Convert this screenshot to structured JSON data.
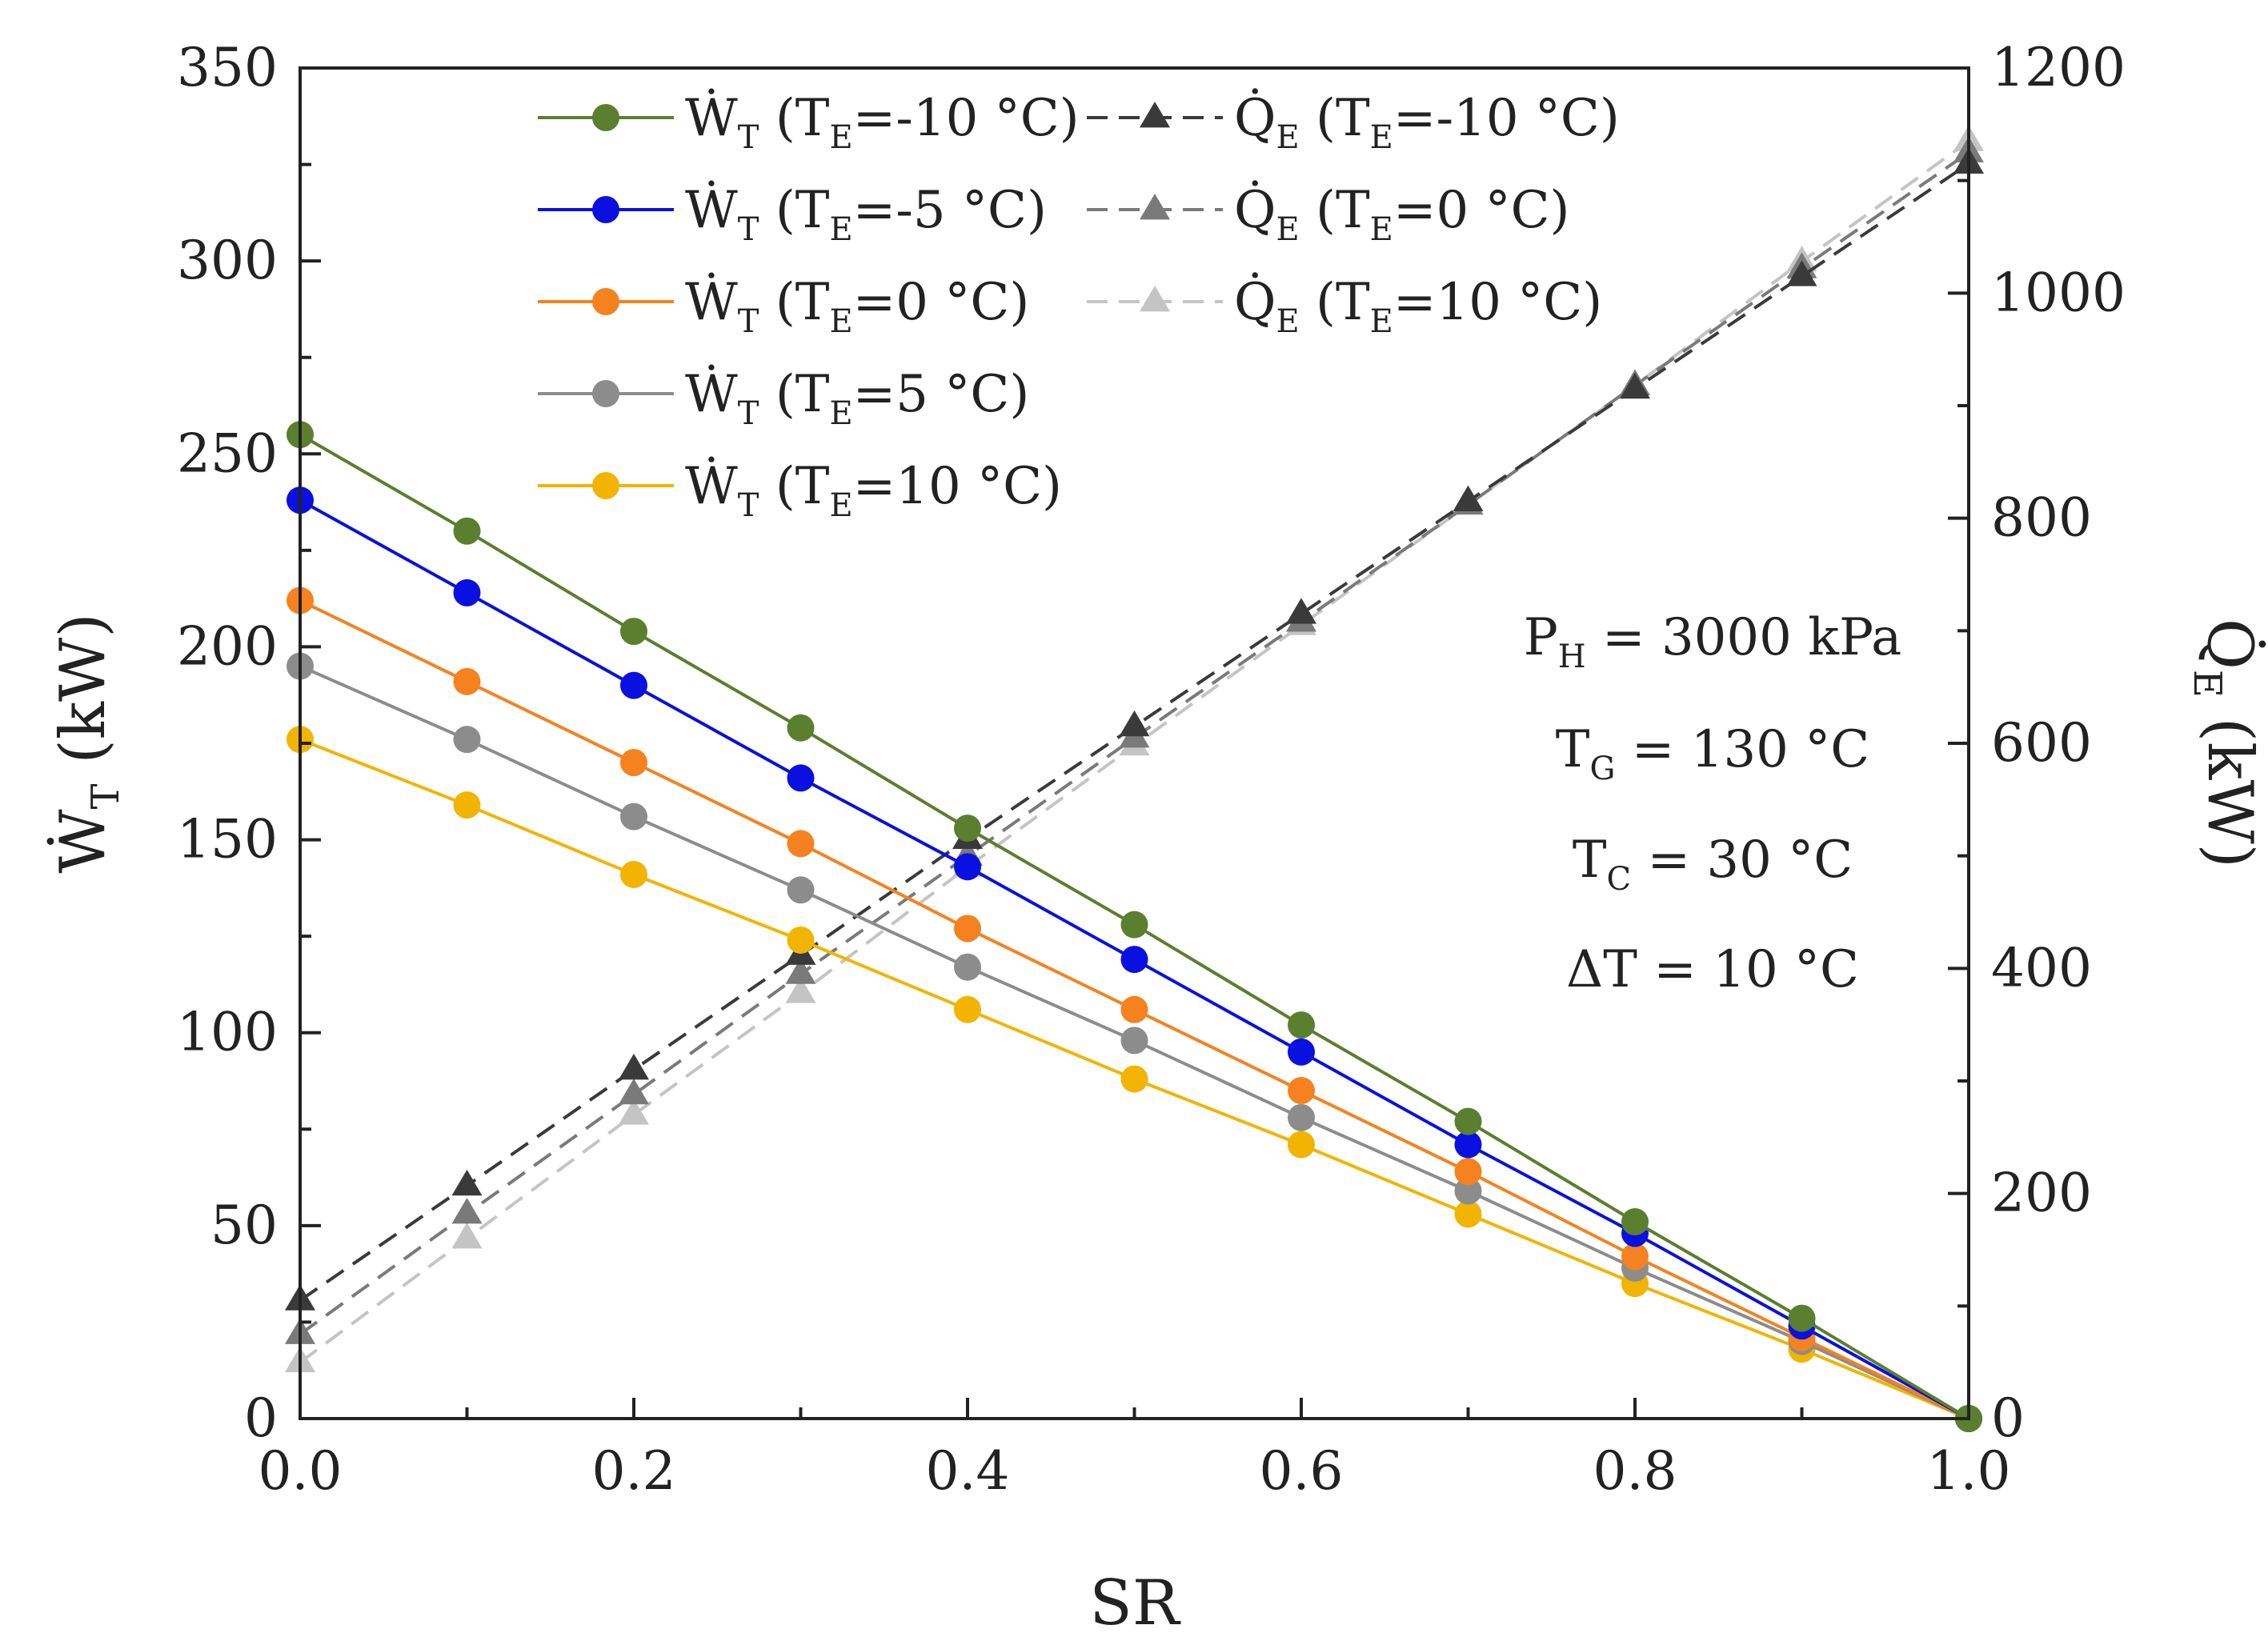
{
  "chart_data": {
    "type": "line",
    "xlabel": "SR",
    "ylabel_left": {
      "main": "Ẇ",
      "sub": "T",
      "unit": " (kW)"
    },
    "ylabel_right": {
      "main": "Q̇",
      "sub": "E",
      "unit": " (kW)"
    },
    "xlim": [
      0,
      1
    ],
    "ylim_left": [
      0,
      350
    ],
    "ylim_right": [
      0,
      1200
    ],
    "x_ticks": [
      "0.0",
      "0.2",
      "0.4",
      "0.6",
      "0.8",
      "1.0"
    ],
    "y_left_ticks": [
      "0",
      "50",
      "100",
      "150",
      "200",
      "250",
      "300",
      "350"
    ],
    "y_right_ticks": [
      "0",
      "200",
      "400",
      "600",
      "800",
      "1000",
      "1200"
    ],
    "grid": false,
    "legend_placement": "top",
    "x": [
      0.0,
      0.1,
      0.2,
      0.3,
      0.4,
      0.5,
      0.6,
      0.7,
      0.8,
      0.9,
      1.0
    ],
    "series": [
      {
        "name": "Ẇ_T (T_E=-10 °C)",
        "label_main": "Ẇ",
        "label_sub1": "T",
        "label_mid": " (T",
        "label_sub2": "E",
        "label_end": "=-10 °C)",
        "axis": "left",
        "marker": "circle",
        "dashed": false,
        "color": "#5a7f2e",
        "values": [
          255,
          230,
          204,
          179,
          153,
          128,
          102,
          77,
          51,
          26,
          0
        ]
      },
      {
        "name": "Ẇ_T (T_E=-5 °C)",
        "label_main": "Ẇ",
        "label_sub1": "T",
        "label_mid": " (T",
        "label_sub2": "E",
        "label_end": "=-5 °C)",
        "axis": "left",
        "marker": "circle",
        "dashed": false,
        "color": "#0a10e0",
        "values": [
          238,
          214,
          190,
          166,
          143,
          119,
          95,
          71,
          48,
          24,
          0
        ]
      },
      {
        "name": "Ẇ_T (T_E=0 °C)",
        "label_main": "Ẇ",
        "label_sub1": "T",
        "label_mid": " (T",
        "label_sub2": "E",
        "label_end": "=0 °C)",
        "axis": "left",
        "marker": "circle",
        "dashed": false,
        "color": "#f5821f",
        "values": [
          212,
          191,
          170,
          149,
          127,
          106,
          85,
          64,
          42,
          21,
          0
        ]
      },
      {
        "name": "Ẇ_T (T_E=5 °C)",
        "label_main": "Ẇ",
        "label_sub1": "T",
        "label_mid": " (T",
        "label_sub2": "E",
        "label_end": "=5 °C)",
        "axis": "left",
        "marker": "circle",
        "dashed": false,
        "color": "#8c8c8c",
        "values": [
          195,
          176,
          156,
          137,
          117,
          98,
          78,
          59,
          39,
          20,
          0
        ]
      },
      {
        "name": "Ẇ_T (T_E=10 °C)",
        "label_main": "Ẇ",
        "label_sub1": "T",
        "label_mid": " (T",
        "label_sub2": "E",
        "label_end": "=10 °C)",
        "axis": "left",
        "marker": "circle",
        "dashed": false,
        "color": "#f2b400",
        "values": [
          176,
          159,
          141,
          124,
          106,
          88,
          71,
          53,
          35,
          18,
          0
        ]
      },
      {
        "name": "Q̇_E (T_E=-10 °C)",
        "label_main": "Q̇",
        "label_sub1": "E",
        "label_mid": " (T",
        "label_sub2": "E",
        "label_end": "=-10 °C)",
        "axis": "right",
        "marker": "triangle",
        "dashed": true,
        "color": "#3a3a3a",
        "values": [
          105,
          207,
          310,
          412,
          515,
          615,
          715,
          815,
          915,
          1015,
          1115
        ]
      },
      {
        "name": "Q̇_E (T_E=0 °C)",
        "label_main": "Q̇",
        "label_sub1": "E",
        "label_mid": " (T",
        "label_sub2": "E",
        "label_end": "=0 °C)",
        "axis": "right",
        "marker": "triangle",
        "dashed": true,
        "color": "#7a7a7a",
        "values": [
          75,
          182,
          288,
          395,
          500,
          605,
          708,
          812,
          918,
          1022,
          1125
        ]
      },
      {
        "name": "Q̇_E (T_E=10 °C)",
        "label_main": "Q̇",
        "label_sub1": "E",
        "label_mid": " (T",
        "label_sub2": "E",
        "label_end": "=10 °C)",
        "axis": "right",
        "marker": "triangle",
        "dashed": true,
        "color": "#c4c4c4",
        "values": [
          50,
          160,
          270,
          378,
          490,
          598,
          705,
          812,
          918,
          1028,
          1135
        ]
      }
    ],
    "annotations": [
      {
        "main": "P",
        "sub": "H",
        "rest": " = 3000 kPa"
      },
      {
        "main": "T",
        "sub": "G",
        "rest": " = 130 °C"
      },
      {
        "main": "T",
        "sub": "C",
        "rest": " = 30 °C"
      },
      {
        "main": "ΔT",
        "sub": "",
        "rest": " = 10 °C"
      }
    ]
  }
}
